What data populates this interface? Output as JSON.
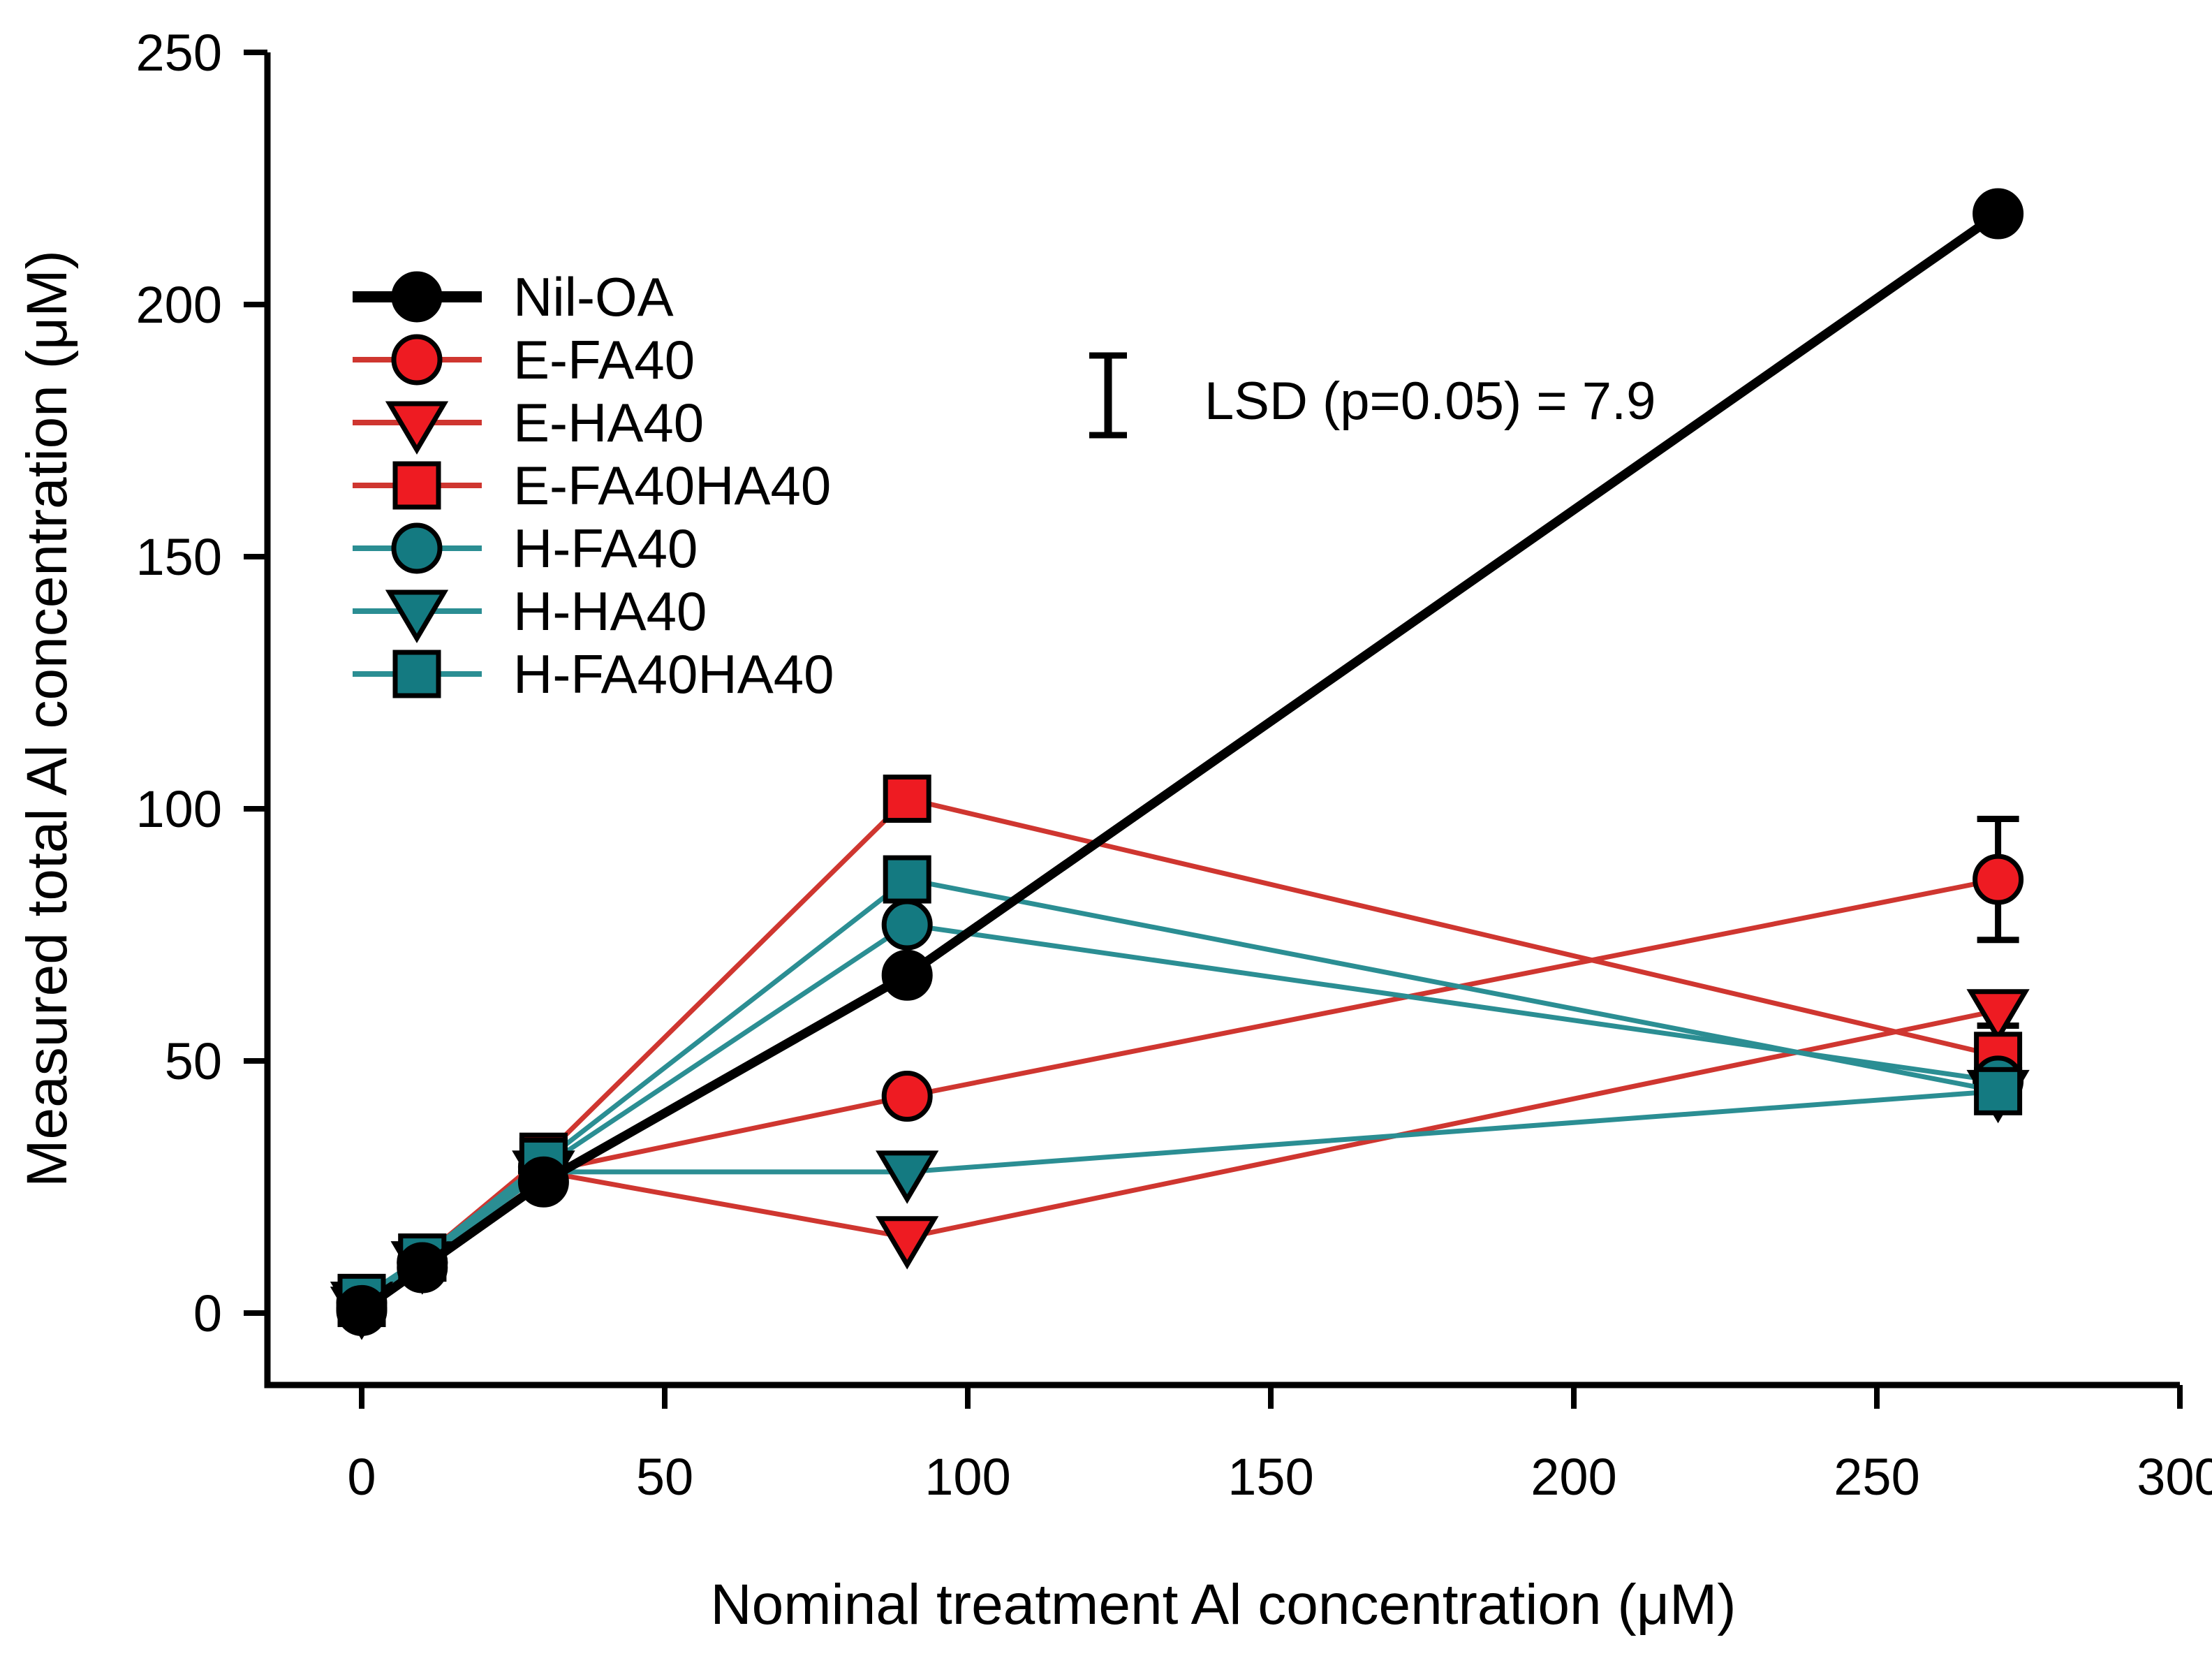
{
  "chart_data": {
    "type": "line",
    "title": "",
    "xlabel": "Nominal treatment Al concentration (μM)",
    "ylabel": "Measured total Al concentration (μM)",
    "x_ticks": [
      0,
      50,
      100,
      150,
      200,
      250,
      300
    ],
    "y_ticks": [
      0,
      50,
      100,
      150,
      200,
      250
    ],
    "xlim": [
      -15.5,
      300
    ],
    "ylim": [
      -14.3,
      250
    ],
    "grid": false,
    "legend_position": "upper-left-inside",
    "x": [
      0,
      10,
      30,
      90,
      270
    ],
    "series": [
      {
        "name": "Nil-OA",
        "marker": "circle",
        "color": "#000000",
        "line_color": "#000000",
        "line_width": 13,
        "values": [
          0.5,
          9,
          26,
          67,
          218
        ],
        "errors": [
          0,
          0,
          0,
          0,
          0
        ]
      },
      {
        "name": "E-FA40",
        "marker": "circle",
        "color": "#ee1b22",
        "line_color": "#cf3630",
        "line_width": 7,
        "values": [
          1,
          10,
          28,
          43,
          86
        ],
        "errors": [
          0,
          0,
          0,
          0,
          12
        ]
      },
      {
        "name": "E-HA40",
        "marker": "triangle-down",
        "color": "#ee1b22",
        "line_color": "#cf3630",
        "line_width": 7,
        "values": [
          1,
          10,
          28,
          15,
          60
        ],
        "errors": [
          0,
          0,
          0,
          0,
          3
        ]
      },
      {
        "name": "E-FA40HA40",
        "marker": "square",
        "color": "#ee1b22",
        "line_color": "#cf3630",
        "line_width": 7,
        "values": [
          2,
          11,
          31,
          102,
          51
        ],
        "errors": [
          0,
          0,
          0,
          0,
          0
        ]
      },
      {
        "name": "H-FA40",
        "marker": "circle",
        "color": "#147a81",
        "line_color": "#2b8e93",
        "line_width": 7,
        "values": [
          2,
          10,
          29,
          77,
          46
        ],
        "errors": [
          0,
          0,
          0,
          0,
          0
        ]
      },
      {
        "name": "H-HA40",
        "marker": "triangle-down",
        "color": "#147a81",
        "line_color": "#2b8e93",
        "line_width": 7,
        "values": [
          2,
          10,
          28,
          28,
          44
        ],
        "errors": [
          0,
          0,
          0,
          0,
          0
        ]
      },
      {
        "name": "H-FA40HA40",
        "marker": "square",
        "color": "#147a81",
        "line_color": "#2b8e93",
        "line_width": 7,
        "values": [
          3,
          11,
          30,
          86,
          44
        ],
        "errors": [
          0,
          0,
          0,
          0,
          4
        ]
      }
    ],
    "draw_order": [
      1,
      2,
      3,
      4,
      5,
      6,
      0
    ],
    "annotation": {
      "text": "LSD (p=0.05) = 7.9",
      "lsd_value": 7.9
    }
  }
}
